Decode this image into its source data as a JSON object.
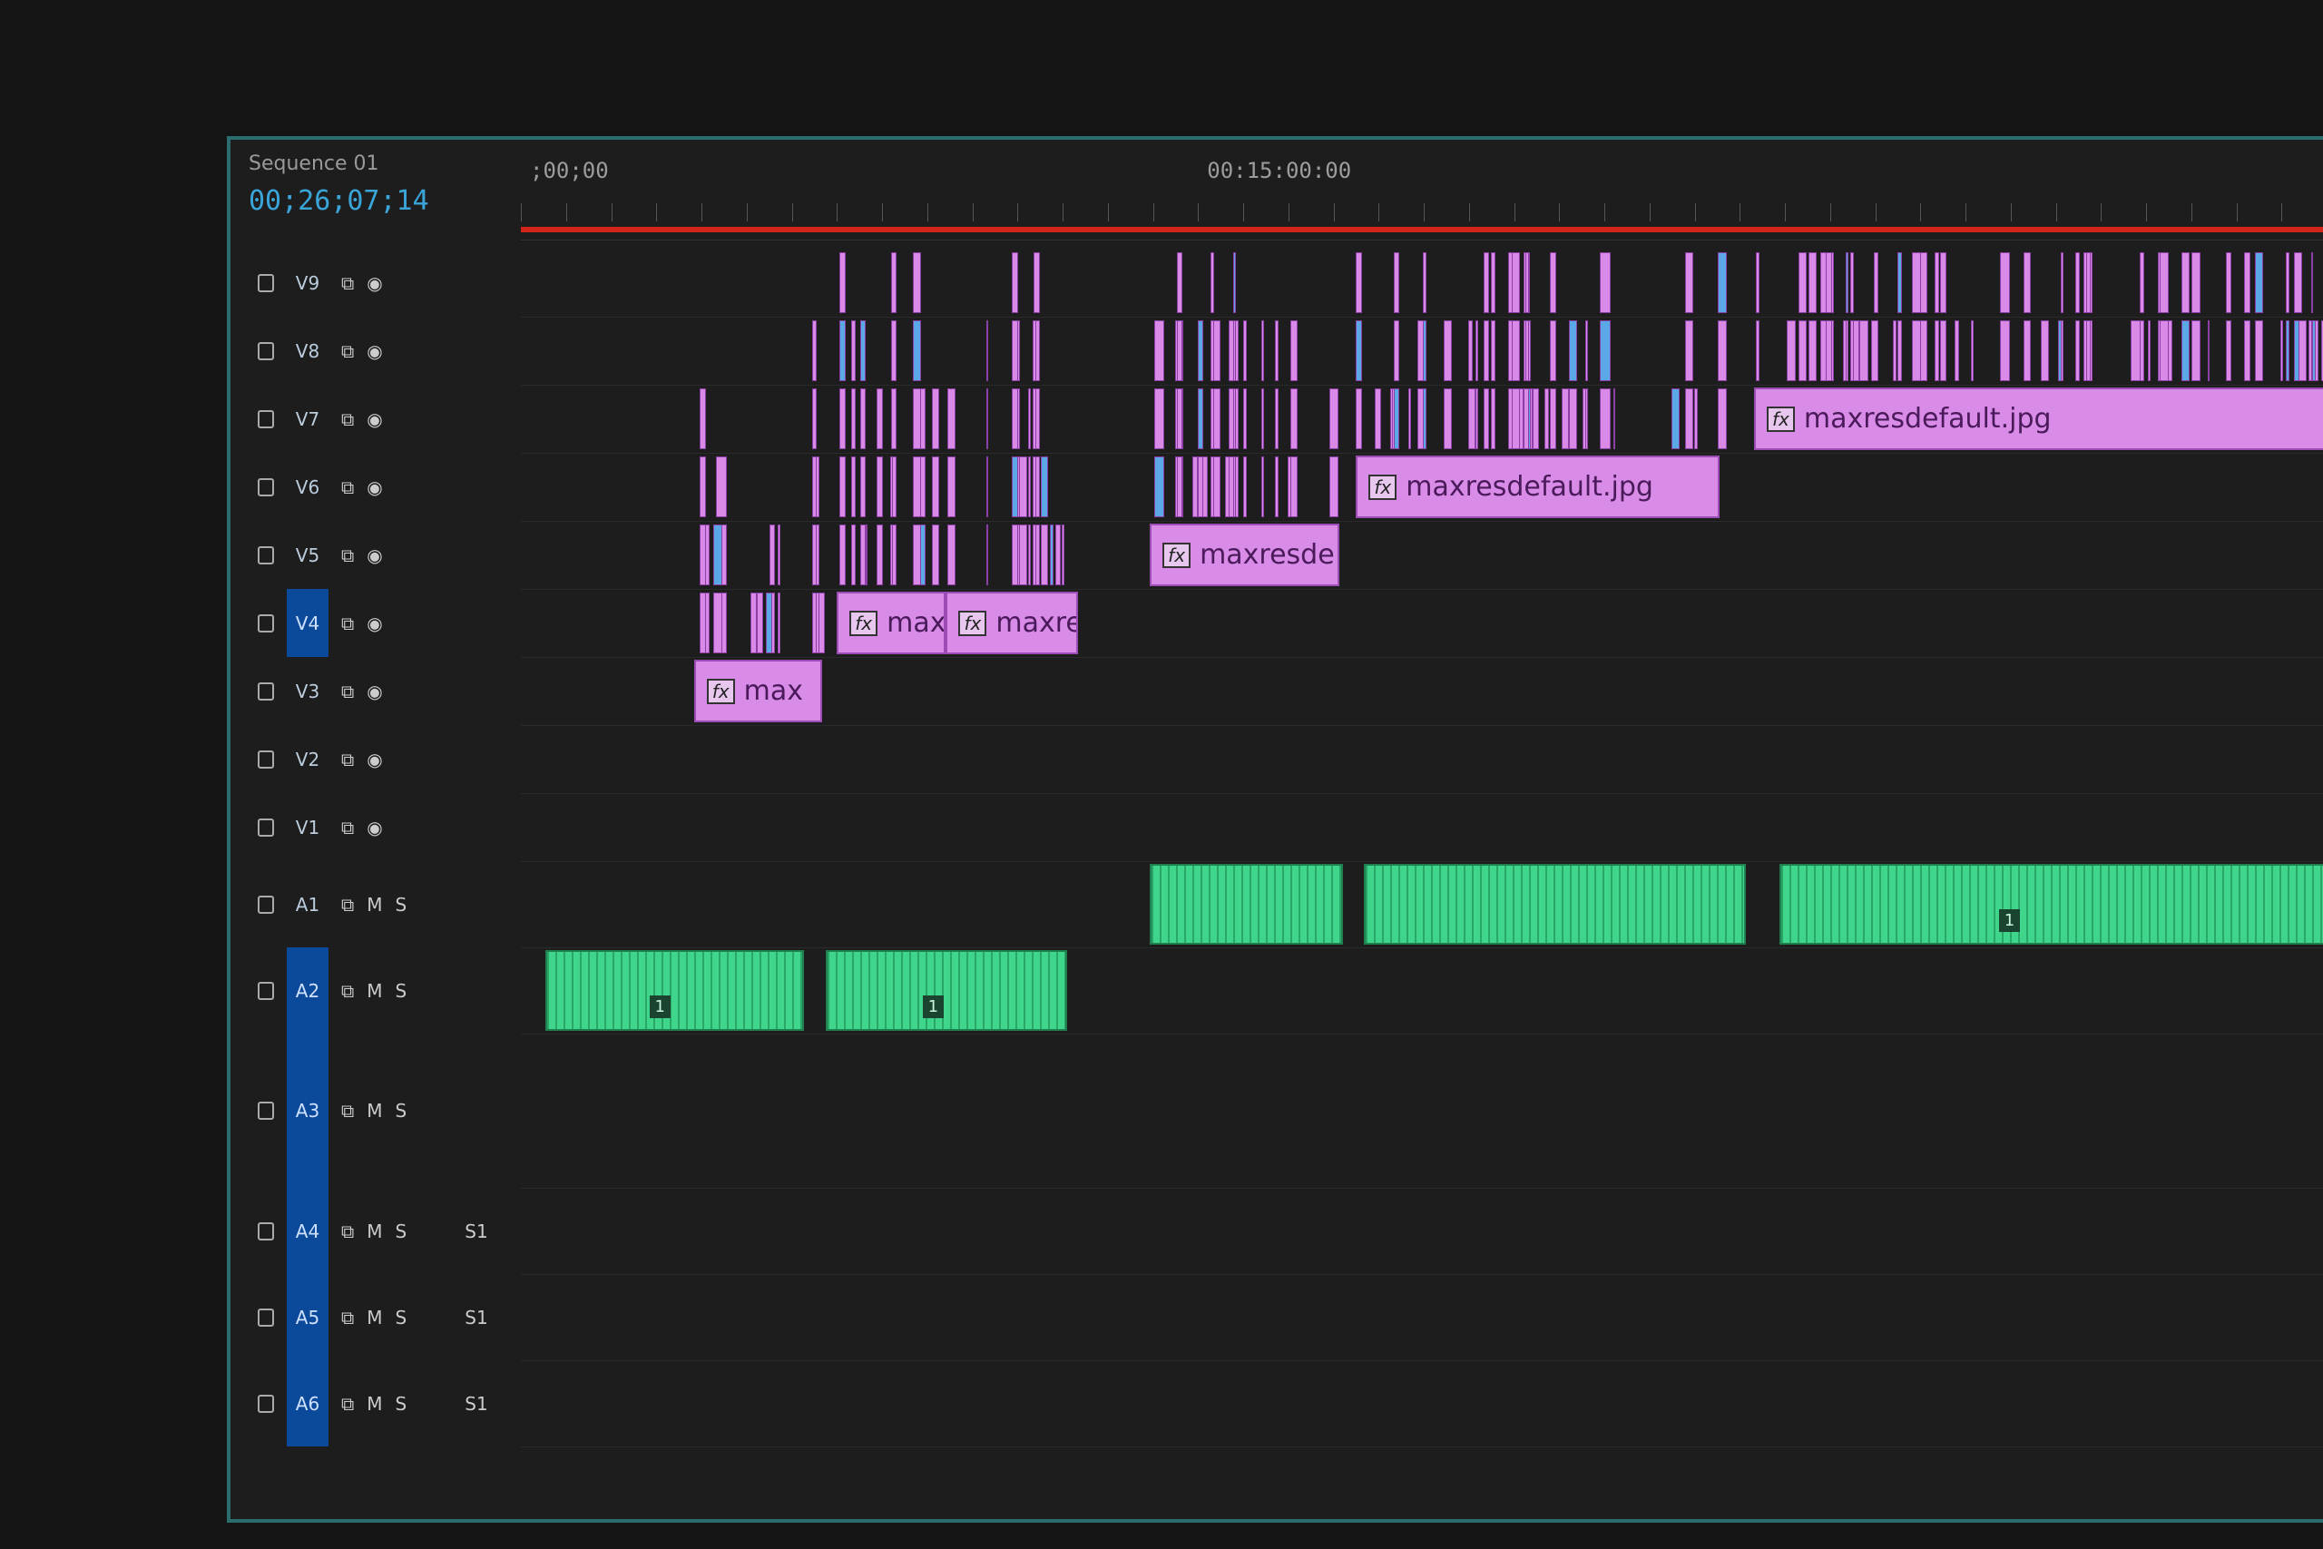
{
  "sequence": {
    "tab_label": "Sequence 01",
    "timecode": "00;26;07;14"
  },
  "ruler": {
    "labels": [
      {
        "text": ";00;00",
        "time": 0
      },
      {
        "text": "00:15:00:00",
        "time": 900
      }
    ],
    "duration_seconds": 2400,
    "work_area_end": 2400
  },
  "colors": {
    "video_clip": "#d98be8",
    "audio_clip": "#3fd58a",
    "accent_magenta": "#e040b0",
    "accent_blue": "#5aa9e6",
    "work_area": "#d3241a",
    "track_target": "#0b4a9a",
    "panel_border": "#2b6d6f"
  },
  "tracks": [
    {
      "name": "V9",
      "type": "video"
    },
    {
      "name": "V8",
      "type": "video"
    },
    {
      "name": "V7",
      "type": "video"
    },
    {
      "name": "V6",
      "type": "video"
    },
    {
      "name": "V5",
      "type": "video"
    },
    {
      "name": "V4",
      "type": "video",
      "targeted": true
    },
    {
      "name": "V3",
      "type": "video"
    },
    {
      "name": "V2",
      "type": "video"
    },
    {
      "name": "V1",
      "type": "video"
    },
    {
      "name": "A1",
      "type": "audio",
      "m": "M",
      "s": "S"
    },
    {
      "name": "A2",
      "type": "audio",
      "m": "M",
      "s": "S",
      "targeted": true
    },
    {
      "name": "A3",
      "type": "audio",
      "m": "M",
      "s": "S",
      "targeted": true
    },
    {
      "name": "A4",
      "type": "audio",
      "m": "M",
      "s": "S",
      "sub": "S1",
      "targeted": true
    },
    {
      "name": "A5",
      "type": "audio",
      "m": "M",
      "s": "S",
      "sub": "S1",
      "targeted": true
    },
    {
      "name": "A6",
      "type": "audio",
      "m": "M",
      "s": "S",
      "sub": "S1",
      "targeted": true
    }
  ],
  "clips": [
    {
      "track": "V3",
      "start": 230,
      "end": 400,
      "label": "max",
      "fx": "fx"
    },
    {
      "track": "V4",
      "start": 420,
      "end": 565,
      "label": "maxi",
      "fx": "fx"
    },
    {
      "track": "V4",
      "start": 565,
      "end": 740,
      "label": "maxre",
      "fx": "fx"
    },
    {
      "track": "V5",
      "start": 836,
      "end": 1088,
      "label": "maxresde",
      "fx": "fx"
    },
    {
      "track": "V6",
      "start": 1110,
      "end": 1593,
      "label": "maxresdefault.jpg",
      "fx": "fx"
    },
    {
      "track": "V7",
      "start": 1639,
      "end": 2400,
      "label": "maxresdefault.jpg",
      "fx": "fx"
    },
    {
      "track": "A2",
      "start": 33,
      "end": 376,
      "badge": "1"
    },
    {
      "track": "A2",
      "start": 405,
      "end": 726,
      "badge": "1"
    },
    {
      "track": "A1",
      "start": 836,
      "end": 1093
    },
    {
      "track": "A1",
      "start": 1121,
      "end": 1628
    },
    {
      "track": "A1",
      "start": 1673,
      "end": 2400,
      "badge": "1"
    }
  ]
}
